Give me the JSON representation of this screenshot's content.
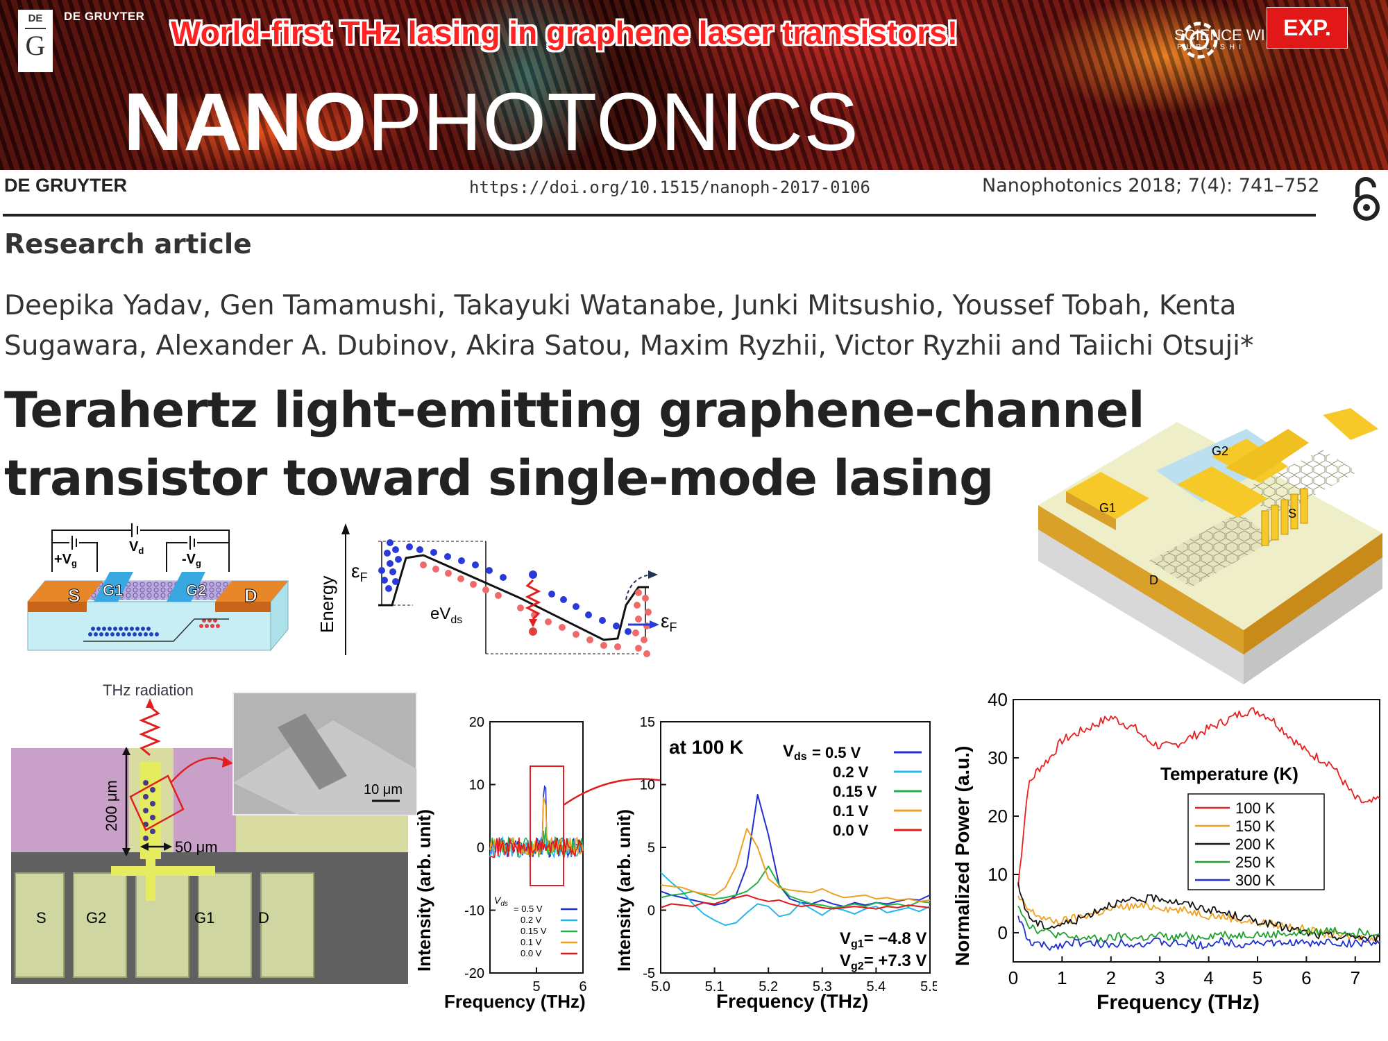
{
  "banner": {
    "logo_top": "DE",
    "logo_letter": "G",
    "publisher": "DE GRUYTER",
    "headline": "World-first THz lasing in graphene laser transistors!",
    "partner": "SCIENCE WI",
    "partner_sub": "PUBLISHI",
    "badge": "EXP.",
    "journal_bold": "NANO",
    "journal_light": "PHOTONICS"
  },
  "header": {
    "publisher": "DE GRUYTER",
    "doi": "https://doi.org/10.1515/nanoph-2017-0106",
    "citation": "Nanophotonics 2018; 7(4): 741–752"
  },
  "article": {
    "type": "Research article",
    "authors_line1": "Deepika Yadav, Gen Tamamushi, Takayuki Watanabe, Junki Mitsushio, Youssef Tobah, Kenta",
    "authors_line2": "Sugawara, Alexander A. Dubinov, Akira Satou, Maxim Ryzhii, Victor Ryzhii and Taiichi Otsuji*",
    "title_line1": "Terahertz light-emitting graphene-channel",
    "title_line2": "transistor toward single-mode lasing"
  },
  "schematic": {
    "vd": "V",
    "vd_sub": "d",
    "plus_vg": "+V",
    "minus_vg": "-V",
    "vg_sub": "g",
    "s": "S",
    "g1": "G1",
    "g2": "G2",
    "d": "D"
  },
  "band": {
    "axis": "Energy",
    "ef": "ε",
    "ef_sub": "F",
    "evds": "eV",
    "evds_sub": "ds"
  },
  "device3d": {
    "g1": "G1",
    "g2": "G2",
    "s": "S",
    "d": "D"
  },
  "micro": {
    "thz": "THz radiation",
    "len200": "200 μm",
    "len50": "50 μm",
    "scale": "10 μm",
    "pads": [
      "S",
      "G2",
      "G1",
      "D"
    ]
  },
  "colors": {
    "banner_red": "#e21818",
    "headline": "#ff2222",
    "vds05": "#1f2fd0",
    "vds02": "#22b8ee",
    "vds015": "#23b24b",
    "vds01": "#f0a020",
    "vds00": "#e21818",
    "t100": "#e82020",
    "t150": "#f0a020",
    "t200": "#111111",
    "t250": "#20a030",
    "t300": "#2030d0"
  },
  "chart_data": [
    {
      "type": "line",
      "xlabel": "Frequency (THz)",
      "ylabel": "Intensity (arb. unit)",
      "xticks": [
        "5",
        "6"
      ],
      "yticks": [
        "20",
        "10",
        "0",
        "-10",
        "-20"
      ],
      "xlim": [
        4,
        6
      ],
      "ylim": [
        -20,
        20
      ],
      "legend_title": "V",
      "legend_title_sub": "ds",
      "legend_position": "bottom-left",
      "series": [
        {
          "name": "= 0.5  V",
          "peak": 9.2
        },
        {
          "name": "0.2  V",
          "peak": 1.0
        },
        {
          "name": "0.15  V",
          "peak": 2.0
        },
        {
          "name": "0.1  V",
          "peak": 6.5
        },
        {
          "name": "0.0  V",
          "peak": 0.5
        }
      ]
    },
    {
      "type": "line",
      "annotation": "at 100 K",
      "xlabel": "Frequency (THz)",
      "ylabel": "Intensity (arb. unit)",
      "xticks": [
        "5.0",
        "5.1",
        "5.2",
        "5.3",
        "5.4",
        "5.5"
      ],
      "yticks": [
        "15",
        "10",
        "5",
        "0",
        "-5"
      ],
      "xlim": [
        5.0,
        5.5
      ],
      "ylim": [
        -5,
        15
      ],
      "legend_label": "V",
      "legend_label_sub": "ds",
      "legend_position": "top-right",
      "vg1": "= −4.8 V",
      "vg2": "= +7.3 V",
      "vg_label": "V",
      "vg1_sub": "g1",
      "vg2_sub": "g2",
      "x": [
        5.0,
        5.02,
        5.04,
        5.06,
        5.08,
        5.1,
        5.12,
        5.14,
        5.16,
        5.18,
        5.2,
        5.22,
        5.24,
        5.26,
        5.28,
        5.3,
        5.32,
        5.34,
        5.36,
        5.38,
        5.4,
        5.42,
        5.44,
        5.46,
        5.48,
        5.5
      ],
      "series": [
        {
          "name": "= 0.5  V",
          "values": [
            1.5,
            1.2,
            1.0,
            0.8,
            0.6,
            0.4,
            0.6,
            1.2,
            3.5,
            9.2,
            6.0,
            2.0,
            0.9,
            0.6,
            0.5,
            0.8,
            0.5,
            0.3,
            0.6,
            0.4,
            0.6,
            0.5,
            0.7,
            0.9,
            0.8,
            1.2
          ]
        },
        {
          "name": "0.2  V",
          "values": [
            3.0,
            2.2,
            1.5,
            0.5,
            -0.3,
            -0.8,
            -1.2,
            -1.0,
            -0.2,
            0.5,
            0.3,
            -0.5,
            -0.3,
            0.6,
            0.1,
            -0.4,
            0.2,
            0.0,
            -0.3,
            0.1,
            0.3,
            -0.2,
            0.0,
            0.2,
            -0.1,
            0.3
          ]
        },
        {
          "name": "0.15  V",
          "values": [
            1.0,
            1.2,
            1.3,
            1.5,
            1.2,
            0.9,
            1.0,
            1.2,
            1.5,
            2.2,
            3.5,
            2.0,
            1.1,
            0.8,
            0.5,
            0.4,
            0.2,
            0.3,
            0.5,
            0.3,
            0.6,
            0.4,
            0.5,
            0.3,
            0.7,
            0.6
          ]
        },
        {
          "name": "0.1  V",
          "values": [
            2.0,
            1.9,
            1.8,
            1.5,
            1.3,
            1.2,
            1.8,
            3.5,
            6.5,
            5.0,
            2.5,
            1.8,
            1.6,
            1.5,
            1.4,
            1.7,
            1.3,
            1.0,
            1.1,
            1.2,
            0.9,
            1.0,
            0.8,
            0.9,
            0.7,
            0.8
          ]
        },
        {
          "name": "0.0  V",
          "values": [
            0.2,
            0.5,
            0.4,
            0.3,
            0.6,
            0.5,
            0.8,
            1.0,
            1.2,
            0.9,
            0.7,
            0.8,
            0.5,
            0.3,
            0.4,
            0.2,
            0.1,
            0.2,
            0.3,
            0.2,
            0.1,
            0.3,
            0.2,
            0.4,
            0.3,
            0.2
          ]
        }
      ]
    },
    {
      "type": "line",
      "xlabel": "Frequency  (THz)",
      "ylabel": "Normalized  Power  (a.u.)",
      "xticks": [
        "0",
        "1",
        "2",
        "3",
        "4",
        "5",
        "6",
        "7"
      ],
      "yticks": [
        "40",
        "30",
        "20",
        "10",
        "0"
      ],
      "xlim": [
        0,
        7.5
      ],
      "ylim": [
        -5,
        40
      ],
      "legend_title": "Temperature (K)",
      "legend_position": "center-right",
      "x": [
        0.1,
        0.3,
        0.5,
        0.75,
        1.0,
        1.25,
        1.5,
        1.75,
        2.0,
        2.25,
        2.5,
        2.75,
        3.0,
        3.25,
        3.5,
        3.75,
        4.0,
        4.25,
        4.5,
        4.75,
        5.0,
        5.25,
        5.5,
        5.75,
        6.0,
        6.25,
        6.5,
        6.75,
        7.0,
        7.25,
        7.5
      ],
      "series": [
        {
          "name": "100 K",
          "values": [
            8,
            25,
            28,
            30,
            33,
            34,
            35,
            36,
            37,
            36,
            35,
            33,
            32,
            32,
            33,
            34,
            35,
            36,
            37,
            38,
            38,
            37,
            35,
            33,
            31,
            30,
            29,
            26,
            23,
            22,
            23
          ]
        },
        {
          "name": "150 K",
          "values": [
            6,
            4,
            3,
            2,
            2,
            2.5,
            3,
            3.5,
            4,
            4.5,
            4.5,
            4.5,
            4.5,
            4.0,
            3.8,
            3.5,
            3.0,
            2.8,
            2.5,
            2.0,
            1.8,
            1.5,
            1.2,
            1.0,
            0.5,
            0.0,
            -0.3,
            -0.5,
            -0.8,
            -1.0,
            -1.5
          ]
        },
        {
          "name": "200 K",
          "values": [
            8,
            3,
            1.5,
            1.0,
            1.5,
            2.0,
            3.0,
            4.0,
            5.0,
            5.2,
            5.5,
            5.8,
            6.0,
            5.5,
            5.0,
            4.5,
            4.0,
            3.5,
            3.0,
            2.5,
            2.0,
            1.5,
            1.0,
            0.5,
            0.0,
            -0.5,
            -0.5,
            -0.8,
            -0.5,
            -1.0,
            -0.8
          ]
        },
        {
          "name": "250 K",
          "values": [
            5,
            1.5,
            0.5,
            0.0,
            -0.5,
            -1.0,
            -0.8,
            -1.2,
            -1.0,
            -0.5,
            -1.0,
            -0.8,
            -0.5,
            -1.0,
            -0.5,
            -0.8,
            -0.5,
            -0.2,
            -0.5,
            -0.3,
            -0.2,
            -0.5,
            0.0,
            -0.3,
            0.2,
            0.0,
            0.5,
            0.2,
            0.0,
            0.3,
            -0.2
          ]
        },
        {
          "name": "300 K",
          "values": [
            3,
            -1.5,
            -2.0,
            -2.5,
            -2.0,
            -1.5,
            -2.0,
            -1.8,
            -2.2,
            -1.5,
            -2.0,
            -1.8,
            -1.5,
            -2.0,
            -1.8,
            -2.2,
            -2.0,
            -1.5,
            -1.8,
            -2.0,
            -1.5,
            -1.8,
            -2.0,
            -1.5,
            -2.0,
            -1.8,
            -1.5,
            -2.0,
            -1.8,
            -1.5,
            -2.0
          ]
        }
      ]
    }
  ]
}
